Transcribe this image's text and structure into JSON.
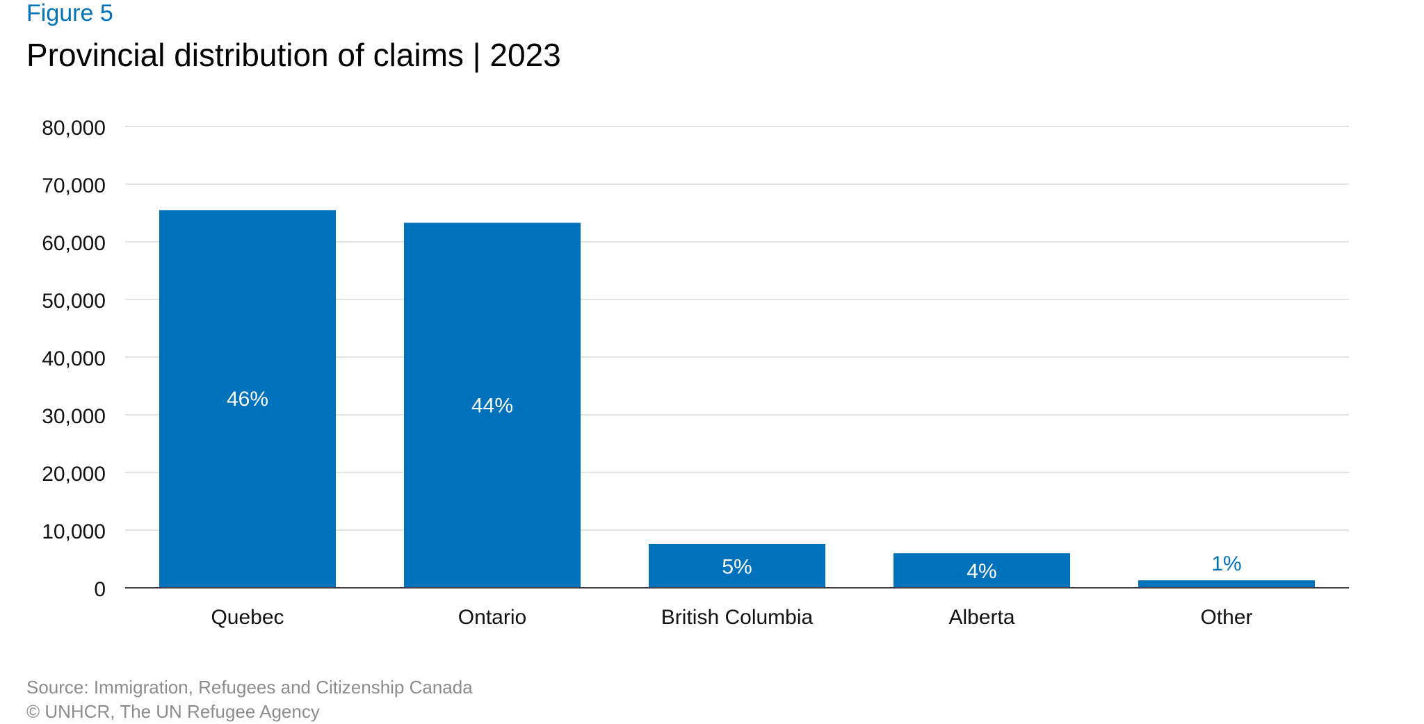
{
  "figure_label": "Figure 5",
  "title": "Provincial distribution of claims | 2023",
  "footer": {
    "source": "Source: Immigration, Refugees and Citizenship Canada",
    "copyright": "© UNHCR, The UN Refugee Agency"
  },
  "colors": {
    "bar": "#0072bc",
    "grid": "#d9d9d9",
    "axis": "#404040",
    "label_inside": "#ffffff",
    "label_outside": "#0072bc",
    "figure_label": "#0072bc",
    "footer": "#8c8c8c"
  },
  "chart_data": {
    "type": "bar",
    "title": "Provincial distribution of claims | 2023",
    "xlabel": "",
    "ylabel": "",
    "categories": [
      "Quebec",
      "Ontario",
      "British Columbia",
      "Alberta",
      "Other"
    ],
    "values": [
      65500,
      63300,
      7600,
      6000,
      1300
    ],
    "data_labels": [
      "46%",
      "44%",
      "5%",
      "4%",
      "1%"
    ],
    "ylim": [
      0,
      80000
    ],
    "yticks": [
      0,
      10000,
      20000,
      30000,
      40000,
      50000,
      60000,
      70000,
      80000
    ],
    "ytick_labels": [
      "0",
      "10,000",
      "20,000",
      "30,000",
      "40,000",
      "50,000",
      "60,000",
      "70,000",
      "80,000"
    ],
    "grid": true,
    "legend": "none"
  }
}
